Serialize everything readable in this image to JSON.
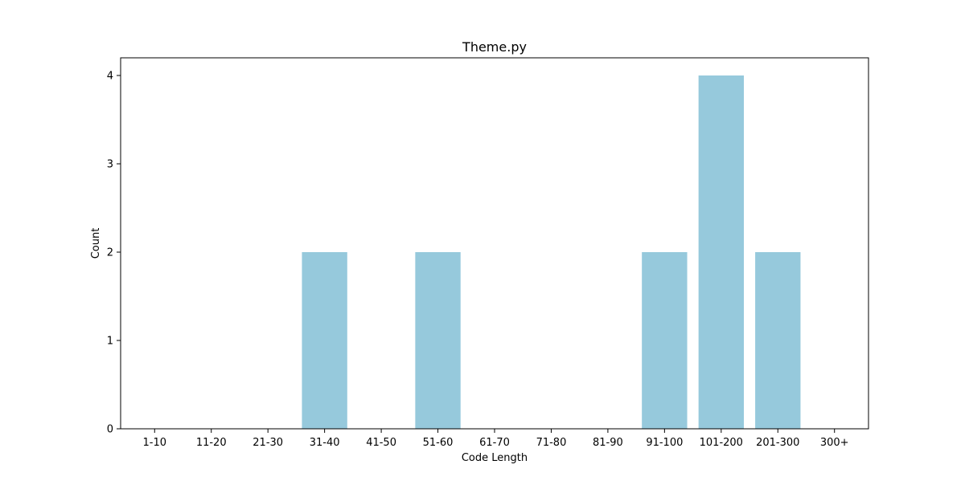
{
  "chart_data": {
    "type": "bar",
    "title": "Theme.py",
    "xlabel": "Code Length",
    "ylabel": "Count",
    "categories": [
      "1-10",
      "11-20",
      "21-30",
      "31-40",
      "41-50",
      "51-60",
      "61-70",
      "71-80",
      "81-90",
      "91-100",
      "101-200",
      "201-300",
      "300+"
    ],
    "values": [
      0,
      0,
      0,
      2,
      0,
      2,
      0,
      0,
      0,
      2,
      4,
      2,
      0
    ],
    "ylim": [
      0,
      4.2
    ],
    "yticks": [
      0,
      1,
      2,
      3,
      4
    ],
    "bar_color": "#96c9dc",
    "grid": false,
    "legend": "none"
  }
}
